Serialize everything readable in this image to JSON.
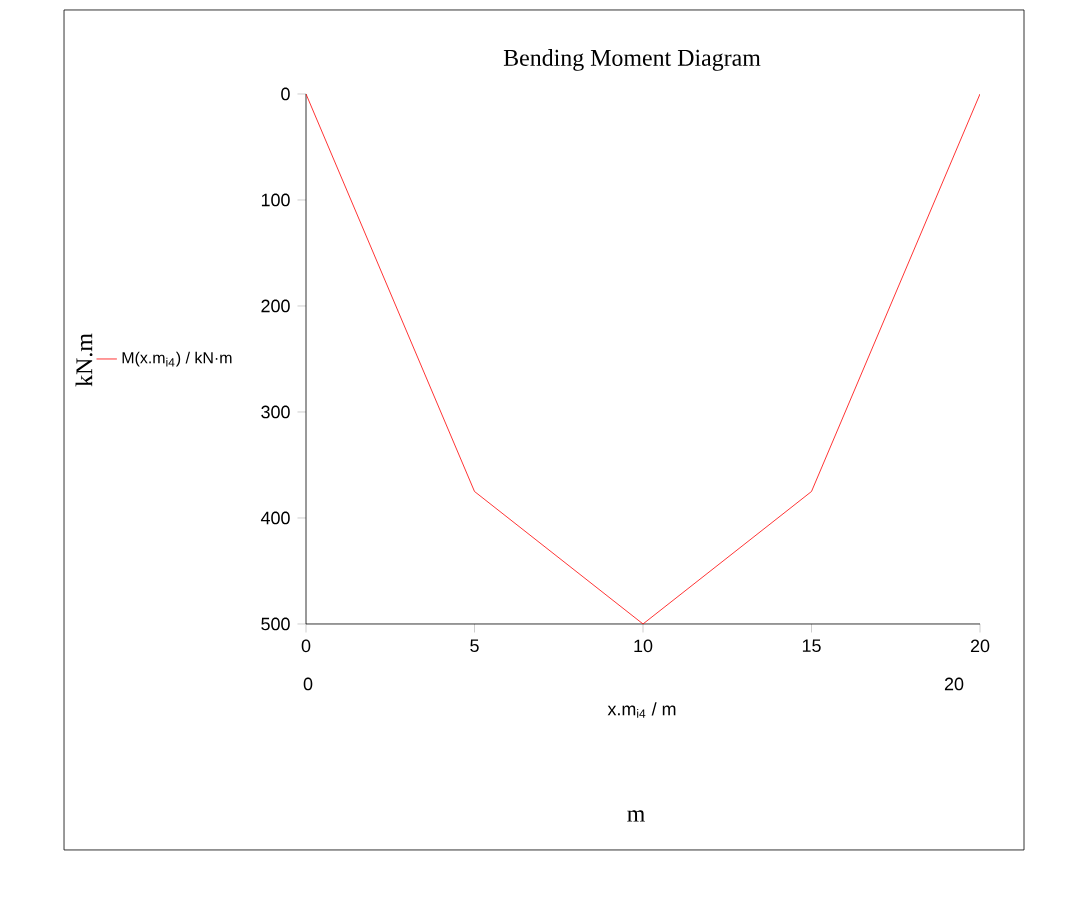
{
  "chart_data": {
    "type": "line",
    "title": "Bending Moment Diagram",
    "xlabel": "x.m$_{i4}$ / m",
    "annotations": [
      "0",
      "20",
      "m",
      "kN.m"
    ],
    "x": [
      0,
      5,
      10,
      15,
      20
    ],
    "series": [
      {
        "name": "M(x.m$_{i4}$) / kN·m",
        "color": "#ff0000",
        "values": [
          0,
          375,
          500,
          375,
          0
        ]
      }
    ],
    "xlim": [
      0,
      20
    ],
    "ylim": [
      500,
      0
    ],
    "xticks": [
      0,
      5,
      10,
      15,
      20
    ],
    "yticks": [
      0,
      100,
      200,
      300,
      400,
      500
    ],
    "grid": false,
    "legend": "left",
    "marker": "none",
    "line_style": "solid"
  }
}
